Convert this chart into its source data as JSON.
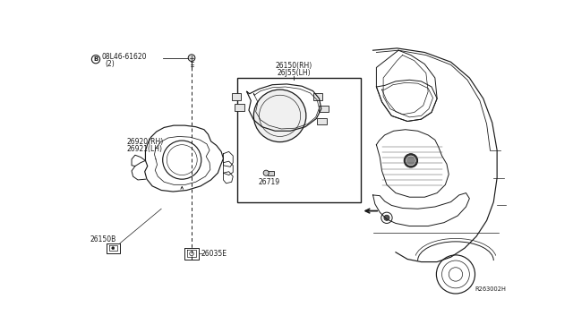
{
  "bg_color": "#ffffff",
  "fig_width": 6.4,
  "fig_height": 3.72,
  "dpi": 100,
  "parts": {
    "screw_label": "08L46-61620",
    "screw_qty": "(2)",
    "bracket_rh": "26920(RH)",
    "bracket_lh": "26921(LH)",
    "lamp_rh": "26150(RH)",
    "lamp_lh": "26J55(LH)",
    "connector": "26035E",
    "bulb_holder": "26150B",
    "small_bulb": "26719",
    "ref_code": "R263002H"
  },
  "line_color": "#1a1a1a",
  "text_color": "#1a1a1a",
  "font_size": 5.5,
  "small_font": 4.8
}
